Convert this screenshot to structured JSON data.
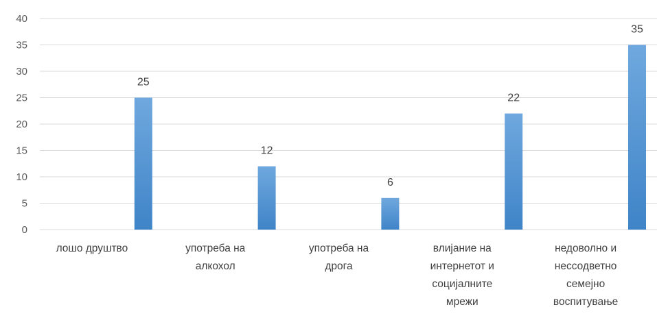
{
  "chart_data": {
    "type": "bar",
    "categories": [
      [
        "лошо друштво"
      ],
      [
        "употреба на",
        "алкохол"
      ],
      [
        "употреба на",
        "дрога"
      ],
      [
        "влијание на",
        "интернетот и",
        "социјалните",
        "мрежи"
      ],
      [
        "недоволно и",
        "нессодветно",
        "семејно",
        "воспитување"
      ]
    ],
    "values": [
      25,
      12,
      6,
      22,
      35
    ],
    "ylim": [
      0,
      40
    ],
    "yticks": [
      "0",
      "5",
      "10",
      "15",
      "20",
      "25",
      "30",
      "35",
      "40"
    ],
    "grid": true,
    "bar_color": "#5b9bd5",
    "title": "",
    "xlabel": "",
    "ylabel": ""
  }
}
